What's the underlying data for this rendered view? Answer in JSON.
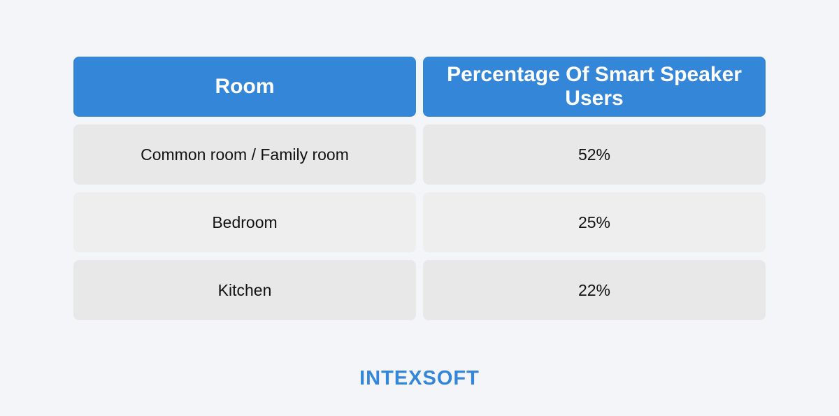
{
  "table": {
    "headers": [
      "Room",
      "Percentage Of Smart Speaker Users"
    ],
    "rows": [
      {
        "room": "Common room / Family room",
        "percentage": "52%"
      },
      {
        "room": "Bedroom",
        "percentage": "25%"
      },
      {
        "room": "Kitchen",
        "percentage": "22%"
      }
    ]
  },
  "brand": {
    "logo_text": "INTEXSOFT",
    "accent_color": "#3486d9"
  },
  "chart_data": {
    "type": "table",
    "title": "",
    "columns": [
      "Room",
      "Percentage Of Smart Speaker Users"
    ],
    "categories": [
      "Common room / Family room",
      "Bedroom",
      "Kitchen"
    ],
    "values": [
      52,
      25,
      22
    ],
    "unit": "%"
  }
}
